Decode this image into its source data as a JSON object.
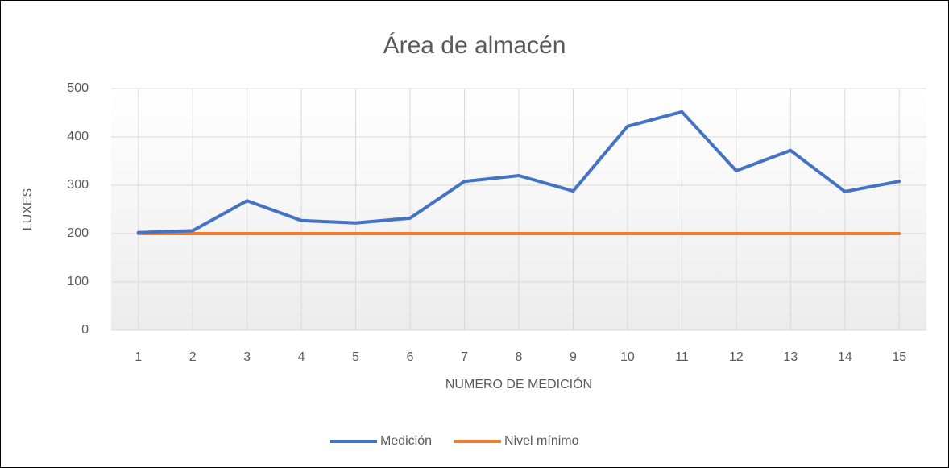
{
  "chart_data": {
    "type": "line",
    "title": "Área de almacén",
    "x_label": "NUMERO DE MEDICIÓN",
    "y_label": "LUXES",
    "categories": [
      1,
      2,
      3,
      4,
      5,
      6,
      7,
      8,
      9,
      10,
      11,
      12,
      13,
      14,
      15
    ],
    "series": [
      {
        "name": "Medición",
        "color": "#4472c4",
        "values": [
          202,
          206,
          268,
          227,
          222,
          232,
          308,
          320,
          288,
          422,
          452,
          330,
          372,
          287,
          308
        ]
      },
      {
        "name": "Nivel mínimo",
        "color": "#ed7d31",
        "values": [
          200,
          200,
          200,
          200,
          200,
          200,
          200,
          200,
          200,
          200,
          200,
          200,
          200,
          200,
          200
        ]
      }
    ],
    "ylim": [
      0,
      500
    ],
    "yticks": [
      0,
      100,
      200,
      300,
      400,
      500
    ],
    "grid": true,
    "legend": "bottom"
  }
}
